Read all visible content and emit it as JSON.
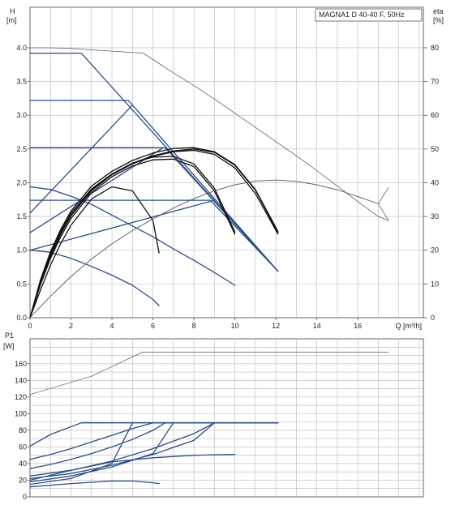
{
  "chart_data": [
    {
      "type": "line",
      "title": "MAGNA1 D 40-40 F, 50Hz",
      "xlabel": "Q [m³/h]",
      "ylabel": "H",
      "ylabel_unit": "[m]",
      "y2label": "eta",
      "y2label_unit": "[%]",
      "xlim": [
        0,
        19.2
      ],
      "ylim": [
        0,
        4.6
      ],
      "y2lim": [
        0,
        92
      ],
      "grid": true,
      "xticks": [
        "0",
        "2",
        "4",
        "6",
        "8",
        "10",
        "12",
        "14",
        "16"
      ],
      "yticks": [
        "0.0",
        "0.5",
        "1.0",
        "1.5",
        "2.0",
        "2.5",
        "3.0",
        "3.5",
        "4.0"
      ],
      "y2ticks": [
        "0",
        "10",
        "20",
        "30",
        "40",
        "50",
        "60",
        "70",
        "80"
      ],
      "blue_color": "#2c4d86",
      "series": [
        {
          "style": "blue",
          "x": [
            0,
            2.5,
            12.1
          ],
          "y": [
            3.92,
            3.92,
            0.69
          ]
        },
        {
          "style": "blue",
          "x": [
            0,
            4.8,
            12.1
          ],
          "y": [
            3.22,
            3.22,
            0.69
          ]
        },
        {
          "style": "blue",
          "x": [
            0,
            6.6,
            12.1
          ],
          "y": [
            2.52,
            2.52,
            0.69
          ]
        },
        {
          "style": "blue",
          "x": [
            0,
            8.8,
            12.1
          ],
          "y": [
            1.74,
            1.74,
            0.69
          ]
        },
        {
          "style": "blue",
          "x": [
            0,
            5.0
          ],
          "y": [
            1.55,
            3.15
          ]
        },
        {
          "style": "blue",
          "x": [
            0,
            6.5
          ],
          "y": [
            1.26,
            2.52
          ]
        },
        {
          "style": "blue",
          "x": [
            0,
            9.0
          ],
          "y": [
            1.0,
            1.74
          ]
        },
        {
          "style": "blue",
          "x": [
            0,
            1,
            2,
            3,
            4,
            5,
            6,
            7,
            8,
            9,
            10
          ],
          "y": [
            1.94,
            1.9,
            1.8,
            1.68,
            1.52,
            1.36,
            1.2,
            1.02,
            0.85,
            0.67,
            0.48
          ]
        },
        {
          "style": "blue",
          "x": [
            0,
            1,
            2,
            3,
            4,
            5,
            6,
            6.3
          ],
          "y": [
            1.0,
            0.97,
            0.88,
            0.76,
            0.63,
            0.48,
            0.27,
            0.18
          ]
        },
        {
          "style": "black",
          "x": [
            0,
            0.5,
            1,
            1.5,
            2,
            3,
            4,
            5,
            6,
            7,
            8,
            9,
            10,
            11,
            12.1
          ],
          "y": [
            0,
            0.52,
            0.95,
            1.28,
            1.55,
            1.91,
            2.13,
            2.29,
            2.4,
            2.47,
            2.5,
            2.45,
            2.26,
            1.89,
            1.26
          ]
        },
        {
          "style": "black",
          "x": [
            0,
            0.5,
            1,
            1.5,
            2,
            3,
            4,
            5,
            6,
            7,
            8,
            9,
            10,
            11,
            12.1
          ],
          "y": [
            0,
            0.49,
            0.91,
            1.24,
            1.51,
            1.88,
            2.12,
            2.28,
            2.39,
            2.46,
            2.48,
            2.42,
            2.22,
            1.84,
            1.24
          ]
        },
        {
          "style": "black",
          "x": [
            0,
            0.5,
            1,
            1.5,
            2,
            3,
            4,
            5,
            6,
            7,
            8,
            9,
            10,
            11,
            12.1
          ],
          "y": [
            0,
            0.55,
            0.98,
            1.31,
            1.58,
            1.95,
            2.17,
            2.33,
            2.44,
            2.51,
            2.52,
            2.46,
            2.27,
            1.9,
            1.28
          ]
        },
        {
          "style": "black",
          "x": [
            0,
            0.5,
            1,
            1.5,
            2,
            3,
            4,
            5,
            6,
            7,
            8,
            9,
            10
          ],
          "y": [
            0,
            0.48,
            0.88,
            1.2,
            1.47,
            1.85,
            2.09,
            2.25,
            2.34,
            2.35,
            2.24,
            1.88,
            1.24
          ]
        },
        {
          "style": "black",
          "x": [
            0,
            0.5,
            1,
            1.5,
            2,
            3,
            4,
            5,
            6,
            7,
            8,
            9,
            10
          ],
          "y": [
            0,
            0.5,
            0.92,
            1.25,
            1.52,
            1.89,
            2.13,
            2.29,
            2.38,
            2.39,
            2.28,
            1.92,
            1.27
          ]
        },
        {
          "style": "black",
          "x": [
            0,
            0.5,
            1,
            1.5,
            2,
            3,
            4,
            5,
            6,
            6.3
          ],
          "y": [
            0,
            0.4,
            0.78,
            1.1,
            1.37,
            1.76,
            1.94,
            1.88,
            1.44,
            0.96
          ]
        },
        {
          "style": "thin",
          "axis": "y2",
          "x": [
            0,
            1,
            2,
            3,
            4,
            5,
            5.5,
            6,
            7,
            8,
            9,
            10,
            11,
            12,
            13,
            14,
            15,
            16,
            17,
            17.5
          ],
          "y": [
            80,
            80,
            79.8,
            79.4,
            79,
            78.6,
            78.5,
            76.5,
            72.6,
            68.8,
            64.8,
            60.6,
            56.4,
            52.2,
            48,
            43.6,
            39,
            34.4,
            30,
            28.8
          ]
        },
        {
          "style": "thin",
          "axis": "y2",
          "x": [
            0,
            1,
            2,
            3,
            4,
            5,
            6,
            7,
            8,
            9,
            10,
            11,
            12,
            13,
            14,
            15,
            16,
            17,
            17.5
          ],
          "y": [
            0,
            6.4,
            12.2,
            17.4,
            21.9,
            25.8,
            29.3,
            32.5,
            35.3,
            37.6,
            39.4,
            40.5,
            40.8,
            40.4,
            39.4,
            37.9,
            35.9,
            33.8,
            38.6
          ]
        },
        {
          "style": "thin",
          "axis": "y2",
          "x": [
            0,
            1,
            2,
            3,
            4,
            5,
            6,
            7,
            8,
            9,
            10,
            11,
            12,
            13,
            14,
            15,
            16,
            17,
            17.5
          ],
          "y": [
            0,
            6.4,
            12.2,
            17.4,
            21.9,
            25.8,
            29.3,
            32.5,
            35.3,
            37.6,
            39.4,
            40.5,
            40.8,
            40.4,
            39.4,
            37.9,
            35.9,
            33.8,
            28.8
          ]
        }
      ]
    },
    {
      "type": "line",
      "ylabel": "P1",
      "ylabel_unit": "[W]",
      "xlim": [
        0,
        19.2
      ],
      "ylim": [
        0,
        190
      ],
      "grid": true,
      "yticks": [
        "0",
        "20",
        "40",
        "60",
        "80",
        "100",
        "120",
        "140",
        "160"
      ],
      "series": [
        {
          "style": "thin",
          "x": [
            0,
            3,
            5.5,
            17.5
          ],
          "y": [
            123,
            145,
            174,
            174
          ]
        },
        {
          "style": "blue",
          "x": [
            0,
            1,
            2.5,
            12.1
          ],
          "y": [
            61,
            75,
            89,
            89
          ]
        },
        {
          "style": "blue",
          "x": [
            0,
            1,
            2,
            3,
            4,
            5,
            6,
            7,
            12.1
          ],
          "y": [
            45,
            51,
            58,
            66,
            74,
            82,
            89,
            89,
            89
          ]
        },
        {
          "style": "blue",
          "x": [
            0,
            1,
            2,
            3,
            4,
            5,
            6,
            6.6,
            12.1
          ],
          "y": [
            34,
            39,
            45,
            52,
            60,
            69,
            80,
            89,
            89
          ]
        },
        {
          "style": "blue",
          "x": [
            0,
            2,
            4,
            6,
            8,
            9
          ],
          "y": [
            25,
            32,
            43,
            58,
            76,
            89
          ]
        },
        {
          "style": "blue",
          "x": [
            0,
            2,
            4,
            6,
            8,
            9
          ],
          "y": [
            22,
            28,
            38,
            51,
            68,
            89
          ]
        },
        {
          "style": "blue",
          "x": [
            0,
            2,
            4,
            6,
            7
          ],
          "y": [
            18,
            25,
            36,
            52,
            89
          ]
        },
        {
          "style": "blue",
          "x": [
            0,
            2,
            4,
            5
          ],
          "y": [
            15,
            22,
            40,
            89
          ]
        },
        {
          "style": "blue",
          "x": [
            0,
            2,
            4,
            6,
            8,
            10
          ],
          "y": [
            20,
            32,
            42,
            47,
            50,
            51
          ]
        },
        {
          "style": "blue",
          "x": [
            0,
            2,
            4,
            5,
            6,
            6.3
          ],
          "y": [
            12,
            16,
            19,
            19,
            17,
            16
          ]
        }
      ]
    }
  ]
}
